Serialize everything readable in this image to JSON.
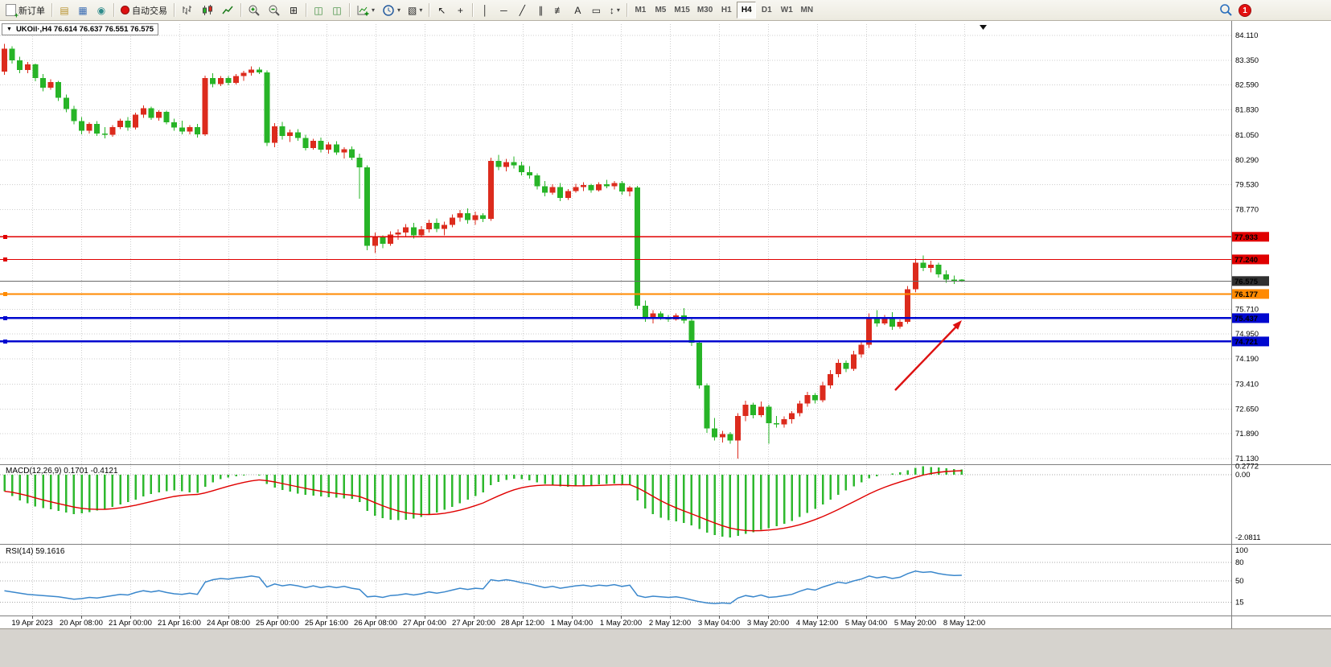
{
  "toolbar": {
    "new_order_label": "新订单",
    "autotrading_label": "自动交易",
    "timeframes": [
      "M1",
      "M5",
      "M15",
      "M30",
      "H1",
      "H4",
      "D1",
      "W1",
      "MN"
    ],
    "active_timeframe": "H4",
    "notification_count": "1"
  },
  "icons": {
    "dropdown_triangle": "▼",
    "market_watch": "▤",
    "data_window": "▦",
    "navigator": "◉",
    "tile_windows": "⊞",
    "cascade_windows": "◫",
    "arrange_windows": "◫",
    "templates": "▧",
    "cursor": "↖",
    "crosshair": "+",
    "vertical_line": "│",
    "horizontal_line": "─",
    "trend_line": "╱",
    "channel": "∥",
    "fibonacci": "≢",
    "text_tool": "A",
    "shapes": "▭",
    "arrows_tool": "↕",
    "dropdown_arrow": "▾"
  },
  "chart": {
    "title": "UKOil·,H4 76.614 76.637 76.551 76.575",
    "symbol": "UKOil",
    "period": "H4"
  },
  "hlines": [
    {
      "label": "77.933",
      "price": 77.933,
      "color": "#e00000",
      "width": 1.2
    },
    {
      "label": "77.240",
      "price": 77.24,
      "color": "#e00000",
      "width": 1.2
    },
    {
      "label": "76.575",
      "price": 76.575,
      "color": "#6a6a6a",
      "width": 1,
      "tag_color": "#303030",
      "current": true
    },
    {
      "label": "76.177",
      "price": 76.177,
      "color": "#ff8a00",
      "width": 2
    },
    {
      "label": "75.437",
      "price": 75.437,
      "color": "#0008cf",
      "width": 2.4
    },
    {
      "label": "74.721",
      "price": 74.721,
      "color": "#0008cf",
      "width": 2.4
    }
  ],
  "chart_data": {
    "type": "candlestick",
    "symbol": "UKOil",
    "timeframe": "H4",
    "note": "red = bullish, green = bearish (Chinese color convention)",
    "colors": {
      "bull": "#dc2b1d",
      "bear": "#27b427",
      "macd_histogram": "#2eb82e",
      "macd_signal": "#e00000",
      "rsi_line": "#3a87cc",
      "grid": "#cfcfcf",
      "arrow": "#dd1111"
    },
    "y_axis": {
      "labels": [
        "84.110",
        "83.350",
        "82.590",
        "81.830",
        "81.050",
        "80.290",
        "79.530",
        "78.770",
        "75.710",
        "74.950",
        "74.190",
        "73.410",
        "72.650",
        "71.890",
        "71.130"
      ],
      "current_price": "76.575"
    },
    "x_axis": {
      "labels": [
        "19 Apr 2023",
        "20 Apr 08:00",
        "21 Apr 00:00",
        "21 Apr 16:00",
        "24 Apr 08:00",
        "25 Apr 00:00",
        "25 Apr 16:00",
        "26 Apr 08:00",
        "27 Apr 04:00",
        "27 Apr 20:00",
        "28 Apr 12:00",
        "1 May 04:00",
        "1 May 20:00",
        "2 May 12:00",
        "3 May 04:00",
        "3 May 20:00",
        "4 May 12:00",
        "5 May 04:00",
        "5 May 20:00",
        "8 May 12:00"
      ]
    },
    "candles": [
      [
        83.0,
        83.85,
        82.9,
        83.7
      ],
      [
        83.7,
        83.78,
        83.25,
        83.35
      ],
      [
        83.35,
        83.45,
        82.95,
        83.05
      ],
      [
        83.05,
        83.3,
        82.95,
        83.22
      ],
      [
        83.22,
        83.25,
        82.7,
        82.8
      ],
      [
        82.8,
        82.92,
        82.4,
        82.5
      ],
      [
        82.5,
        82.76,
        82.45,
        82.68
      ],
      [
        82.68,
        82.72,
        82.1,
        82.2
      ],
      [
        82.2,
        82.3,
        81.75,
        81.85
      ],
      [
        81.85,
        81.95,
        81.38,
        81.48
      ],
      [
        81.48,
        81.6,
        81.08,
        81.18
      ],
      [
        81.18,
        81.45,
        81.1,
        81.4
      ],
      [
        81.4,
        81.48,
        81.02,
        81.1
      ],
      [
        81.1,
        81.3,
        80.95,
        81.06
      ],
      [
        81.06,
        81.36,
        81.0,
        81.3
      ],
      [
        81.3,
        81.56,
        81.24,
        81.5
      ],
      [
        81.5,
        81.6,
        81.18,
        81.28
      ],
      [
        81.28,
        81.74,
        81.22,
        81.68
      ],
      [
        81.68,
        81.96,
        81.58,
        81.88
      ],
      [
        81.88,
        81.92,
        81.52,
        81.58
      ],
      [
        81.58,
        81.82,
        81.5,
        81.76
      ],
      [
        81.76,
        81.8,
        81.38,
        81.44
      ],
      [
        81.44,
        81.56,
        81.18,
        81.28
      ],
      [
        81.28,
        81.5,
        81.08,
        81.16
      ],
      [
        81.16,
        81.36,
        81.08,
        81.3
      ],
      [
        81.3,
        81.4,
        80.98,
        81.08
      ],
      [
        81.08,
        82.88,
        81.02,
        82.8
      ],
      [
        82.8,
        82.95,
        82.52,
        82.62
      ],
      [
        82.62,
        82.86,
        82.56,
        82.8
      ],
      [
        82.8,
        82.86,
        82.58,
        82.66
      ],
      [
        82.66,
        82.92,
        82.6,
        82.86
      ],
      [
        82.86,
        83.02,
        82.72,
        82.96
      ],
      [
        82.96,
        83.16,
        82.88,
        83.06
      ],
      [
        83.06,
        83.14,
        82.92,
        82.98
      ],
      [
        82.98,
        83.04,
        80.72,
        80.82
      ],
      [
        80.82,
        81.42,
        80.68,
        81.32
      ],
      [
        81.32,
        81.46,
        80.92,
        81.02
      ],
      [
        81.02,
        81.22,
        80.84,
        81.14
      ],
      [
        81.14,
        81.24,
        80.88,
        80.96
      ],
      [
        80.96,
        81.06,
        80.58,
        80.66
      ],
      [
        80.66,
        80.94,
        80.6,
        80.88
      ],
      [
        80.88,
        80.98,
        80.52,
        80.6
      ],
      [
        80.6,
        80.84,
        80.48,
        80.76
      ],
      [
        80.76,
        80.86,
        80.44,
        80.52
      ],
      [
        80.52,
        80.68,
        80.34,
        80.62
      ],
      [
        80.62,
        80.7,
        80.28,
        80.36
      ],
      [
        80.36,
        80.48,
        79.1,
        80.06
      ],
      [
        80.06,
        80.12,
        77.52,
        77.66
      ],
      [
        77.66,
        78.06,
        77.44,
        77.92
      ],
      [
        77.92,
        77.98,
        77.58,
        77.72
      ],
      [
        77.72,
        78.1,
        77.66,
        78.0
      ],
      [
        78.0,
        78.16,
        77.84,
        78.06
      ],
      [
        78.06,
        78.32,
        77.94,
        78.22
      ],
      [
        78.22,
        78.36,
        77.88,
        77.98
      ],
      [
        77.98,
        78.26,
        77.92,
        78.16
      ],
      [
        78.16,
        78.46,
        78.06,
        78.36
      ],
      [
        78.36,
        78.5,
        78.08,
        78.18
      ],
      [
        78.18,
        78.4,
        77.98,
        78.3
      ],
      [
        78.3,
        78.62,
        78.22,
        78.52
      ],
      [
        78.52,
        78.76,
        78.4,
        78.66
      ],
      [
        78.66,
        78.8,
        78.34,
        78.44
      ],
      [
        78.44,
        78.7,
        78.3,
        78.6
      ],
      [
        78.6,
        78.66,
        78.38,
        78.48
      ],
      [
        78.48,
        80.36,
        78.42,
        80.26
      ],
      [
        80.26,
        80.44,
        79.98,
        80.08
      ],
      [
        80.08,
        80.32,
        79.94,
        80.22
      ],
      [
        80.22,
        80.4,
        80.02,
        80.12
      ],
      [
        80.12,
        80.24,
        79.82,
        79.92
      ],
      [
        79.92,
        80.1,
        79.72,
        79.82
      ],
      [
        79.82,
        79.88,
        79.38,
        79.48
      ],
      [
        79.48,
        79.64,
        79.18,
        79.28
      ],
      [
        79.28,
        79.54,
        79.22,
        79.46
      ],
      [
        79.46,
        79.58,
        79.02,
        79.12
      ],
      [
        79.12,
        79.4,
        79.06,
        79.34
      ],
      [
        79.34,
        79.56,
        79.28,
        79.46
      ],
      [
        79.46,
        79.6,
        79.34,
        79.52
      ],
      [
        79.52,
        79.56,
        79.28,
        79.36
      ],
      [
        79.36,
        79.6,
        79.32,
        79.54
      ],
      [
        79.54,
        79.68,
        79.42,
        79.48
      ],
      [
        79.48,
        79.64,
        79.38,
        79.58
      ],
      [
        79.58,
        79.64,
        79.22,
        79.32
      ],
      [
        79.32,
        79.5,
        79.18,
        79.44
      ],
      [
        79.44,
        79.5,
        75.72,
        75.82
      ],
      [
        75.82,
        75.98,
        75.32,
        75.42
      ],
      [
        75.42,
        75.68,
        75.28,
        75.58
      ],
      [
        75.58,
        75.64,
        75.38,
        75.46
      ],
      [
        75.46,
        75.54,
        75.32,
        75.4
      ],
      [
        75.4,
        75.58,
        75.36,
        75.52
      ],
      [
        75.52,
        75.74,
        75.28,
        75.36
      ],
      [
        75.36,
        75.42,
        74.58,
        74.68
      ],
      [
        74.68,
        74.74,
        73.28,
        73.38
      ],
      [
        73.38,
        73.44,
        71.92,
        72.06
      ],
      [
        72.06,
        72.38,
        71.68,
        71.78
      ],
      [
        71.78,
        71.98,
        71.62,
        71.88
      ],
      [
        71.88,
        71.94,
        71.58,
        71.68
      ],
      [
        71.68,
        72.52,
        71.13,
        72.44
      ],
      [
        72.44,
        72.9,
        72.28,
        72.78
      ],
      [
        72.78,
        72.84,
        72.36,
        72.46
      ],
      [
        72.46,
        72.88,
        72.4,
        72.72
      ],
      [
        72.72,
        72.78,
        71.58,
        72.22
      ],
      [
        72.22,
        72.44,
        72.08,
        72.18
      ],
      [
        72.18,
        72.42,
        72.08,
        72.34
      ],
      [
        72.34,
        72.58,
        72.2,
        72.52
      ],
      [
        72.52,
        72.9,
        72.42,
        72.82
      ],
      [
        72.82,
        73.18,
        72.72,
        73.08
      ],
      [
        73.08,
        73.14,
        72.82,
        72.92
      ],
      [
        72.92,
        73.48,
        72.86,
        73.38
      ],
      [
        73.38,
        73.84,
        73.28,
        73.72
      ],
      [
        73.72,
        74.18,
        73.62,
        74.06
      ],
      [
        74.06,
        74.14,
        73.78,
        73.88
      ],
      [
        73.88,
        74.44,
        73.82,
        74.32
      ],
      [
        74.32,
        74.74,
        74.22,
        74.62
      ],
      [
        74.62,
        75.58,
        74.52,
        75.46
      ],
      [
        75.46,
        75.68,
        75.18,
        75.28
      ],
      [
        75.28,
        75.54,
        75.22,
        75.44
      ],
      [
        75.44,
        75.62,
        75.08,
        75.18
      ],
      [
        75.18,
        75.4,
        75.12,
        75.32
      ],
      [
        75.32,
        76.42,
        75.26,
        76.32
      ],
      [
        76.32,
        77.26,
        76.24,
        77.14
      ],
      [
        77.14,
        77.36,
        76.88,
        76.98
      ],
      [
        76.98,
        77.2,
        76.84,
        77.08
      ],
      [
        77.08,
        77.14,
        76.68,
        76.78
      ],
      [
        76.78,
        76.9,
        76.52,
        76.62
      ],
      [
        76.62,
        76.74,
        76.48,
        76.58
      ],
      [
        76.614,
        76.637,
        76.551,
        76.575
      ]
    ],
    "macd": {
      "label": "MACD(12,26,9) 0.1701 -0.4121",
      "params": [
        12,
        26,
        9
      ],
      "main_value": 0.1701,
      "signal_value": -0.4121,
      "scale_labels": [
        "0.2772",
        "0.00",
        "-2.0811"
      ],
      "scale": {
        "max": 0.2772,
        "zero": 0,
        "min": -2.0811
      },
      "histogram": [
        -0.55,
        -0.7,
        -0.85,
        -0.95,
        -1.05,
        -1.1,
        -1.15,
        -1.2,
        -1.25,
        -1.3,
        -1.28,
        -1.24,
        -1.19,
        -1.13,
        -1.06,
        -0.98,
        -0.9,
        -0.82,
        -0.72,
        -0.64,
        -0.58,
        -0.54,
        -0.52,
        -0.55,
        -0.58,
        -0.6,
        -0.4,
        -0.25,
        -0.15,
        -0.09,
        -0.05,
        -0.02,
        0.0,
        -0.03,
        -0.3,
        -0.42,
        -0.5,
        -0.56,
        -0.62,
        -0.66,
        -0.69,
        -0.72,
        -0.74,
        -0.76,
        -0.78,
        -0.8,
        -0.9,
        -1.2,
        -1.36,
        -1.44,
        -1.49,
        -1.51,
        -1.49,
        -1.45,
        -1.4,
        -1.33,
        -1.25,
        -1.16,
        -1.06,
        -0.95,
        -0.82,
        -0.7,
        -0.58,
        -0.34,
        -0.24,
        -0.17,
        -0.13,
        -0.15,
        -0.19,
        -0.25,
        -0.3,
        -0.34,
        -0.38,
        -0.4,
        -0.39,
        -0.37,
        -0.35,
        -0.32,
        -0.3,
        -0.29,
        -0.31,
        -0.34,
        -0.85,
        -1.12,
        -1.3,
        -1.42,
        -1.5,
        -1.55,
        -1.6,
        -1.68,
        -1.8,
        -1.92,
        -2.0,
        -2.05,
        -2.08,
        -2.02,
        -1.96,
        -1.9,
        -1.83,
        -1.77,
        -1.7,
        -1.62,
        -1.53,
        -1.4,
        -1.26,
        -1.13,
        -0.98,
        -0.82,
        -0.66,
        -0.52,
        -0.38,
        -0.25,
        -0.12,
        -0.05,
        0.0,
        0.04,
        0.08,
        0.15,
        0.23,
        0.2772,
        0.26,
        0.24,
        0.21,
        0.19,
        0.1701
      ]
    },
    "rsi": {
      "label": "RSI(14) 59.1616",
      "period": 14,
      "value": 59.1616,
      "scale_labels": [
        "100",
        "80",
        "50",
        "15"
      ],
      "levels": [
        80,
        50,
        15
      ],
      "values": [
        34,
        32,
        30,
        28,
        27,
        26,
        25,
        24,
        22,
        20,
        21,
        23,
        22,
        24,
        26,
        28,
        27,
        31,
        34,
        32,
        34,
        31,
        29,
        28,
        30,
        28,
        48,
        52,
        54,
        53,
        55,
        56,
        58,
        56,
        40,
        45,
        42,
        44,
        42,
        39,
        42,
        39,
        41,
        39,
        41,
        38,
        36,
        24,
        25,
        23,
        26,
        27,
        29,
        27,
        29,
        32,
        30,
        32,
        35,
        38,
        36,
        38,
        37,
        52,
        50,
        52,
        50,
        47,
        45,
        42,
        39,
        41,
        38,
        40,
        42,
        43,
        41,
        43,
        42,
        44,
        41,
        43,
        26,
        23,
        25,
        24,
        23,
        24,
        22,
        19,
        16,
        14,
        13,
        14,
        13,
        22,
        26,
        24,
        27,
        23,
        24,
        26,
        28,
        33,
        37,
        35,
        40,
        44,
        48,
        46,
        50,
        53,
        58,
        55,
        57,
        54,
        56,
        62,
        66,
        64,
        65,
        62,
        60,
        59,
        59.1616
      ]
    }
  }
}
